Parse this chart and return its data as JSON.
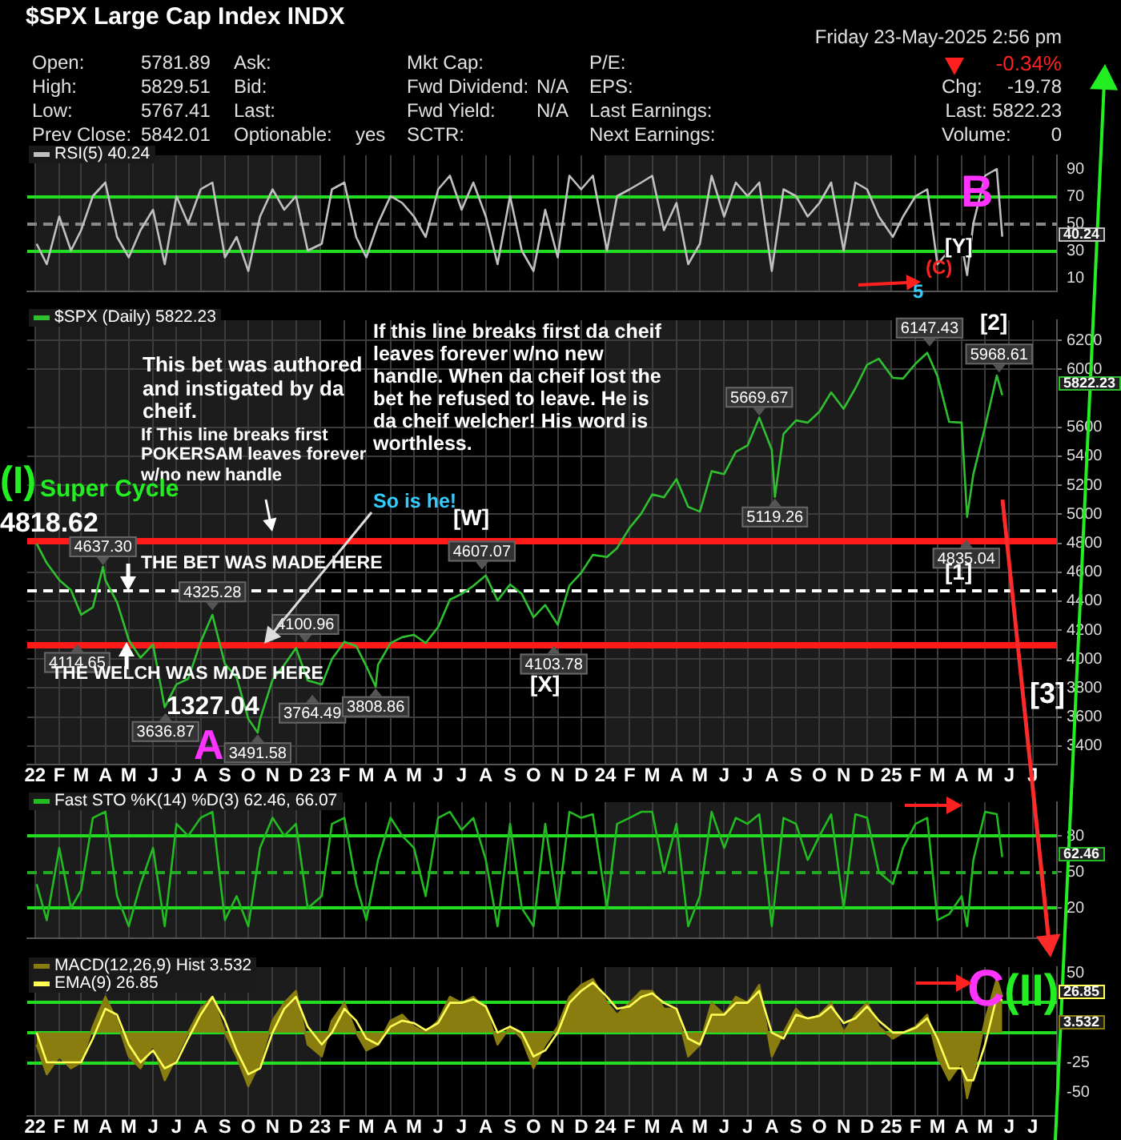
{
  "chart_data": [
    {
      "type": "other",
      "title": "$SPX Large Cap Index INDX",
      "annotations": [
        "Friday  23-May-2025  2:56 pm",
        "Open:",
        "5781.89",
        "Ask:",
        "Mkt Cap:",
        "P/E:",
        "-0.34%",
        "High:",
        "5829.51",
        "Bid:",
        "Fwd Dividend:",
        "N/A",
        "EPS:",
        "Chg:",
        "-19.78",
        "Low:",
        "5767.41",
        "Last:",
        "Fwd Yield:",
        "N/A",
        "Last Earnings:",
        "Last: 5822.23",
        "Prev Close:",
        "5842.01",
        "Optionable:",
        "yes",
        "SCTR:",
        "Next Earnings:",
        "Volume:",
        "0"
      ]
    },
    {
      "type": "line",
      "legend": "top left",
      "grid": "x",
      "tick_labels": "y",
      "x": [
        "2022-01-03",
        "2022-01-16",
        "2022-02-01",
        "2022-02-16",
        "2022-03-01",
        "2022-03-16",
        "2022-04-01",
        "2022-04-16",
        "2022-05-01",
        "2022-05-16",
        "2022-06-01",
        "2022-06-16",
        "2022-07-01",
        "2022-07-16",
        "2022-08-01",
        "2022-08-16",
        "2022-09-01",
        "2022-09-16",
        "2022-10-01",
        "2022-10-16",
        "2022-11-01",
        "2022-11-16",
        "2022-12-01",
        "2022-12-16",
        "2023-01-03",
        "2023-01-16",
        "2023-02-01",
        "2023-02-16",
        "2023-03-01",
        "2023-03-16",
        "2023-04-01",
        "2023-04-16",
        "2023-05-01",
        "2023-05-16",
        "2023-06-01",
        "2023-06-16",
        "2023-07-01",
        "2023-07-16",
        "2023-08-01",
        "2023-08-16",
        "2023-09-01",
        "2023-09-16",
        "2023-10-01",
        "2023-10-16",
        "2023-11-01",
        "2023-11-16",
        "2023-12-01",
        "2023-12-16",
        "2024-01-03",
        "2024-01-16",
        "2024-02-01",
        "2024-02-16",
        "2024-03-01",
        "2024-03-16",
        "2024-04-01",
        "2024-04-16",
        "2024-05-01",
        "2024-05-16",
        "2024-06-01",
        "2024-06-16",
        "2024-07-01",
        "2024-07-16",
        "2024-08-01",
        "2024-08-16",
        "2024-09-01",
        "2024-09-16",
        "2024-10-01",
        "2024-10-16",
        "2024-11-01",
        "2024-11-16",
        "2024-12-01",
        "2024-12-16",
        "2025-01-03",
        "2025-01-16",
        "2025-02-01",
        "2025-02-16",
        "2025-03-01",
        "2025-03-16",
        "2025-04-01",
        "2025-04-08",
        "2025-04-16",
        "2025-05-01",
        "2025-05-16",
        "2025-05-23"
      ],
      "xlim": [
        "2021-12-22",
        "2025-08-01"
      ],
      "xticks": [
        {
          "value": "2022-01",
          "label": null
        },
        {
          "value": "2022-02",
          "label": null
        },
        {
          "value": "2022-03",
          "label": null
        },
        {
          "value": "2022-04",
          "label": null
        },
        {
          "value": "2022-05",
          "label": null
        },
        {
          "value": "2022-06",
          "label": null
        },
        {
          "value": "2022-07",
          "label": null
        },
        {
          "value": "2022-08",
          "label": null
        },
        {
          "value": "2022-09",
          "label": null
        },
        {
          "value": "2022-10",
          "label": null
        },
        {
          "value": "2022-11",
          "label": null
        },
        {
          "value": "2022-12",
          "label": null
        },
        {
          "value": "2023-01",
          "label": null
        },
        {
          "value": "2023-02",
          "label": null
        },
        {
          "value": "2023-03",
          "label": null
        },
        {
          "value": "2023-04",
          "label": null
        },
        {
          "value": "2023-05",
          "label": null
        },
        {
          "value": "2023-06",
          "label": null
        },
        {
          "value": "2023-07",
          "label": null
        },
        {
          "value": "2023-08",
          "label": null
        },
        {
          "value": "2023-09",
          "label": null
        },
        {
          "value": "2023-10",
          "label": null
        },
        {
          "value": "2023-11",
          "label": null
        },
        {
          "value": "2023-12",
          "label": null
        },
        {
          "value": "2024-01",
          "label": null
        },
        {
          "value": "2024-02",
          "label": null
        },
        {
          "value": "2024-03",
          "label": null
        },
        {
          "value": "2024-04",
          "label": null
        },
        {
          "value": "2024-05",
          "label": null
        },
        {
          "value": "2024-06",
          "label": null
        },
        {
          "value": "2024-07",
          "label": null
        },
        {
          "value": "2024-08",
          "label": null
        },
        {
          "value": "2024-09",
          "label": null
        },
        {
          "value": "2024-10",
          "label": null
        },
        {
          "value": "2024-11",
          "label": null
        },
        {
          "value": "2024-12",
          "label": null
        },
        {
          "value": "2025-01",
          "label": null
        },
        {
          "value": "2025-02",
          "label": null
        },
        {
          "value": "2025-03",
          "label": null
        },
        {
          "value": "2025-04",
          "label": null
        },
        {
          "value": "2025-05",
          "label": null
        },
        {
          "value": "2025-06",
          "label": null
        },
        {
          "value": "2025-07",
          "label": null
        }
      ],
      "ylim": [
        0,
        100
      ],
      "yticks": [
        10,
        30,
        50,
        70,
        90
      ],
      "series": [
        {
          "name": "RSI(5) 40.24",
          "color": "#c0c0c0",
          "values": [
            35,
            20,
            55,
            30,
            45,
            70,
            80,
            40,
            25,
            45,
            60,
            20,
            70,
            50,
            75,
            80,
            25,
            40,
            15,
            55,
            75,
            60,
            70,
            30,
            35,
            75,
            80,
            40,
            25,
            50,
            70,
            65,
            55,
            40,
            75,
            85,
            60,
            80,
            55,
            20,
            70,
            30,
            15,
            60,
            25,
            85,
            75,
            85,
            30,
            70,
            75,
            80,
            85,
            45,
            65,
            20,
            35,
            85,
            55,
            80,
            70,
            80,
            15,
            75,
            70,
            55,
            65,
            80,
            30,
            80,
            75,
            55,
            40,
            55,
            70,
            75,
            20,
            30,
            35,
            12,
            50,
            85,
            90,
            40.24
          ]
        }
      ],
      "ref_lines": [
        {
          "axis": "y",
          "value": 70,
          "color": "#22dd22"
        },
        {
          "axis": "y",
          "value": 30,
          "color": "#22dd22"
        },
        {
          "axis": "y",
          "value": 50,
          "color": "#888888",
          "line_style": "dashed"
        }
      ],
      "bands": [
        {
          "axis": "x",
          "from": "2022-01-01",
          "to": "2023-01-01",
          "color": "#1c1c1c"
        },
        {
          "axis": "x",
          "from": "2024-01-01",
          "to": "2025-01-01",
          "color": "#1c1c1c"
        }
      ],
      "annotations": [
        "B",
        "[Y]",
        "(C)",
        "5",
        "40.24"
      ]
    },
    {
      "type": "line",
      "legend": "top left",
      "grid": true,
      "x": [
        "2022-01-03",
        "2022-01-16",
        "2022-02-01",
        "2022-02-16",
        "2022-03-01",
        "2022-03-16",
        "2022-03-29",
        "2022-04-01",
        "2022-04-16",
        "2022-05-01",
        "2022-05-16",
        "2022-06-01",
        "2022-06-16",
        "2022-07-01",
        "2022-07-16",
        "2022-08-01",
        "2022-08-16",
        "2022-09-01",
        "2022-09-16",
        "2022-10-01",
        "2022-10-13",
        "2022-10-16",
        "2022-11-01",
        "2022-11-16",
        "2022-12-01",
        "2022-12-16",
        "2023-01-03",
        "2023-01-16",
        "2023-02-01",
        "2023-02-16",
        "2023-03-01",
        "2023-03-13",
        "2023-03-16",
        "2023-04-01",
        "2023-04-16",
        "2023-05-01",
        "2023-05-16",
        "2023-06-01",
        "2023-06-16",
        "2023-07-01",
        "2023-07-16",
        "2023-08-01",
        "2023-08-16",
        "2023-09-01",
        "2023-09-16",
        "2023-10-01",
        "2023-10-16",
        "2023-11-01",
        "2023-11-16",
        "2023-12-01",
        "2023-12-16",
        "2024-01-03",
        "2024-01-16",
        "2024-02-01",
        "2024-02-16",
        "2024-03-01",
        "2024-03-16",
        "2024-04-01",
        "2024-04-16",
        "2024-05-01",
        "2024-05-16",
        "2024-06-01",
        "2024-06-16",
        "2024-07-01",
        "2024-07-16",
        "2024-08-01",
        "2024-08-05",
        "2024-08-16",
        "2024-09-01",
        "2024-09-16",
        "2024-10-01",
        "2024-10-16",
        "2024-11-01",
        "2024-11-16",
        "2024-12-01",
        "2024-12-16",
        "2025-01-03",
        "2025-01-16",
        "2025-02-01",
        "2025-02-16",
        "2025-03-01",
        "2025-03-16",
        "2025-04-01",
        "2025-04-08",
        "2025-04-16",
        "2025-05-01",
        "2025-05-16",
        "2025-05-23"
      ],
      "xlim": [
        "2021-12-22",
        "2025-08-01"
      ],
      "xticks": [
        {
          "value": "2022-01",
          "label": "22"
        },
        {
          "value": "2022-02",
          "label": "F"
        },
        {
          "value": "2022-03",
          "label": "M"
        },
        {
          "value": "2022-04",
          "label": "A"
        },
        {
          "value": "2022-05",
          "label": "M"
        },
        {
          "value": "2022-06",
          "label": "J"
        },
        {
          "value": "2022-07",
          "label": "J"
        },
        {
          "value": "2022-08",
          "label": "A"
        },
        {
          "value": "2022-09",
          "label": "S"
        },
        {
          "value": "2022-10",
          "label": "O"
        },
        {
          "value": "2022-11",
          "label": "N"
        },
        {
          "value": "2022-12",
          "label": "D"
        },
        {
          "value": "2023-01",
          "label": "23"
        },
        {
          "value": "2023-02",
          "label": "F"
        },
        {
          "value": "2023-03",
          "label": "M"
        },
        {
          "value": "2023-04",
          "label": "A"
        },
        {
          "value": "2023-05",
          "label": "M"
        },
        {
          "value": "2023-06",
          "label": "J"
        },
        {
          "value": "2023-07",
          "label": "J"
        },
        {
          "value": "2023-08",
          "label": "A"
        },
        {
          "value": "2023-09",
          "label": "S"
        },
        {
          "value": "2023-10",
          "label": "O"
        },
        {
          "value": "2023-11",
          "label": "N"
        },
        {
          "value": "2023-12",
          "label": "D"
        },
        {
          "value": "2024-01",
          "label": "24"
        },
        {
          "value": "2024-02",
          "label": "F"
        },
        {
          "value": "2024-03",
          "label": "M"
        },
        {
          "value": "2024-04",
          "label": "A"
        },
        {
          "value": "2024-05",
          "label": "M"
        },
        {
          "value": "2024-06",
          "label": "J"
        },
        {
          "value": "2024-07",
          "label": "J"
        },
        {
          "value": "2024-08",
          "label": "A"
        },
        {
          "value": "2024-09",
          "label": "S"
        },
        {
          "value": "2024-10",
          "label": "O"
        },
        {
          "value": "2024-11",
          "label": "N"
        },
        {
          "value": "2024-12",
          "label": "D"
        },
        {
          "value": "2025-01",
          "label": "25"
        },
        {
          "value": "2025-02",
          "label": "F"
        },
        {
          "value": "2025-03",
          "label": "M"
        },
        {
          "value": "2025-04",
          "label": "A"
        },
        {
          "value": "2025-05",
          "label": "M"
        },
        {
          "value": "2025-06",
          "label": "J"
        },
        {
          "value": "2025-07",
          "label": "J"
        }
      ],
      "ylim": [
        3270,
        6340
      ],
      "yticks": [
        3400,
        3600,
        3800,
        4000,
        4200,
        4400,
        4600,
        4800,
        5000,
        5200,
        5400,
        5600,
        6000,
        6200
      ],
      "series": [
        {
          "name": "$SPX (Daily) 5822.23",
          "color": "#2fc02f",
          "values": [
            4796,
            4663,
            4546,
            4475,
            4306,
            4357,
            4637.3,
            4545,
            4392,
            4131,
            4008,
            4101,
            3667,
            3825,
            3863,
            4118,
            4305,
            3966,
            3873,
            3586,
            3491.58,
            3583,
            3856,
            3959,
            4076,
            3852,
            3824,
            3999,
            4119,
            4090,
            3951,
            3808.86,
            3960,
            4109,
            4151,
            4167,
            4110,
            4221,
            4410,
            4450,
            4505,
            4577,
            4404,
            4515,
            4450,
            4288,
            4373,
            4237,
            4508,
            4595,
            4719,
            4705,
            4766,
            4906,
            5005,
            5137,
            5117,
            5243,
            5051,
            5018,
            5297,
            5277,
            5431,
            5475,
            5667,
            5446,
            5119.26,
            5554,
            5648,
            5633,
            5708,
            5842,
            5728,
            5870,
            6032,
            6074,
            5942,
            5937,
            6040,
            6115,
            5955,
            5638,
            5633,
            4982,
            5276,
            5604,
            5958,
            5822.23
          ]
        }
      ],
      "ref_lines": [
        {
          "axis": "y",
          "value": 4818.62,
          "label": "4818.62",
          "color": "#ff1a1a"
        },
        {
          "axis": "y",
          "value": 4470,
          "color": "#ffffff",
          "line_style": "dashed"
        },
        {
          "axis": "y",
          "value": 4100,
          "color": "#ff1a1a"
        }
      ],
      "bands": [
        {
          "axis": "x",
          "from": "2022-01-01",
          "to": "2023-01-01",
          "color": "#1c1c1c"
        },
        {
          "axis": "x",
          "from": "2024-01-01",
          "to": "2025-01-01",
          "color": "#1c1c1c"
        }
      ],
      "annotations": [
        "This bet was authored and instigated by da cheif.",
        "If This line breaks first POKERSAM leaves forever w/no new handle",
        "If this line breaks first da cheif leaves forever w/no new handle. When da cheif lost the bet he refused to leave. He is da cheif welcher! His word is worthless.",
        "So is he!",
        "THE BET WAS MADE HERE",
        "THE WELCH WAS MADE HERE",
        "(I)",
        "Super Cycle",
        "[W]",
        "[X]",
        "[1]",
        "[2]",
        "[3]",
        "1327.04",
        "A",
        {
          "text": "4637.30",
          "x": "2022-03-29",
          "y": 4637.3
        },
        {
          "text": "4114.65",
          "x": "2022-02-24",
          "y": 4114.65
        },
        {
          "text": "4325.28",
          "x": "2022-08-16",
          "y": 4325.28
        },
        {
          "text": "3636.87",
          "x": "2022-06-17",
          "y": 3636.87
        },
        {
          "text": "3491.58",
          "x": "2022-10-13",
          "y": 3491.58
        },
        {
          "text": "4100.96",
          "x": "2022-12-13",
          "y": 4100.96
        },
        {
          "text": "3764.49",
          "x": "2022-12-22",
          "y": 3764.49
        },
        {
          "text": "3808.86",
          "x": "2023-03-13",
          "y": 3808.86
        },
        {
          "text": "4607.07",
          "x": "2023-07-27",
          "y": 4607.07
        },
        {
          "text": "4103.78",
          "x": "2023-10-27",
          "y": 4103.78
        },
        {
          "text": "5669.67",
          "x": "2024-07-16",
          "y": 5669.67
        },
        {
          "text": "5119.26",
          "x": "2024-08-05",
          "y": 5119.26
        },
        {
          "text": "6147.43",
          "x": "2025-02-19",
          "y": 6147.43
        },
        {
          "text": "4835.04",
          "x": "2025-04-07",
          "y": 4835.04
        },
        {
          "text": "5968.61",
          "x": "2025-05-19",
          "y": 5968.61
        },
        "5822.23"
      ]
    },
    {
      "type": "line",
      "legend": "top left",
      "grid": true,
      "tick_labels": "y",
      "x": [
        "2022-01-03",
        "2022-01-16",
        "2022-02-01",
        "2022-02-16",
        "2022-03-01",
        "2022-03-16",
        "2022-04-01",
        "2022-04-16",
        "2022-05-01",
        "2022-05-16",
        "2022-06-01",
        "2022-06-16",
        "2022-07-01",
        "2022-07-16",
        "2022-08-01",
        "2022-08-16",
        "2022-09-01",
        "2022-09-16",
        "2022-10-01",
        "2022-10-16",
        "2022-11-01",
        "2022-11-16",
        "2022-12-01",
        "2022-12-16",
        "2023-01-03",
        "2023-01-16",
        "2023-02-01",
        "2023-02-16",
        "2023-03-01",
        "2023-03-16",
        "2023-04-01",
        "2023-04-16",
        "2023-05-01",
        "2023-05-16",
        "2023-06-01",
        "2023-06-16",
        "2023-07-01",
        "2023-07-16",
        "2023-08-01",
        "2023-08-16",
        "2023-09-01",
        "2023-09-16",
        "2023-10-01",
        "2023-10-16",
        "2023-11-01",
        "2023-11-16",
        "2023-12-01",
        "2023-12-16",
        "2024-01-03",
        "2024-01-16",
        "2024-02-01",
        "2024-02-16",
        "2024-03-01",
        "2024-03-16",
        "2024-04-01",
        "2024-04-16",
        "2024-05-01",
        "2024-05-16",
        "2024-06-01",
        "2024-06-16",
        "2024-07-01",
        "2024-07-16",
        "2024-08-01",
        "2024-08-16",
        "2024-09-01",
        "2024-09-16",
        "2024-10-01",
        "2024-10-16",
        "2024-11-01",
        "2024-11-16",
        "2024-12-01",
        "2024-12-16",
        "2025-01-03",
        "2025-01-16",
        "2025-02-01",
        "2025-02-16",
        "2025-03-01",
        "2025-03-16",
        "2025-04-01",
        "2025-04-08",
        "2025-04-16",
        "2025-05-01",
        "2025-05-16",
        "2025-05-23"
      ],
      "xlim": [
        "2021-12-22",
        "2025-08-01"
      ],
      "xticks": [
        {
          "value": "2022-01",
          "label": null
        },
        {
          "value": "2022-02",
          "label": null
        },
        {
          "value": "2022-03",
          "label": null
        },
        {
          "value": "2022-04",
          "label": null
        },
        {
          "value": "2022-05",
          "label": null
        },
        {
          "value": "2022-06",
          "label": null
        },
        {
          "value": "2022-07",
          "label": null
        },
        {
          "value": "2022-08",
          "label": null
        },
        {
          "value": "2022-09",
          "label": null
        },
        {
          "value": "2022-10",
          "label": null
        },
        {
          "value": "2022-11",
          "label": null
        },
        {
          "value": "2022-12",
          "label": null
        },
        {
          "value": "2023-01",
          "label": null
        },
        {
          "value": "2023-02",
          "label": null
        },
        {
          "value": "2023-03",
          "label": null
        },
        {
          "value": "2023-04",
          "label": null
        },
        {
          "value": "2023-05",
          "label": null
        },
        {
          "value": "2023-06",
          "label": null
        },
        {
          "value": "2023-07",
          "label": null
        },
        {
          "value": "2023-08",
          "label": null
        },
        {
          "value": "2023-09",
          "label": null
        },
        {
          "value": "2023-10",
          "label": null
        },
        {
          "value": "2023-11",
          "label": null
        },
        {
          "value": "2023-12",
          "label": null
        },
        {
          "value": "2024-01",
          "label": null
        },
        {
          "value": "2024-02",
          "label": null
        },
        {
          "value": "2024-03",
          "label": null
        },
        {
          "value": "2024-04",
          "label": null
        },
        {
          "value": "2024-05",
          "label": null
        },
        {
          "value": "2024-06",
          "label": null
        },
        {
          "value": "2024-07",
          "label": null
        },
        {
          "value": "2024-08",
          "label": null
        },
        {
          "value": "2024-09",
          "label": null
        },
        {
          "value": "2024-10",
          "label": null
        },
        {
          "value": "2024-11",
          "label": null
        },
        {
          "value": "2024-12",
          "label": null
        },
        {
          "value": "2025-01",
          "label": null
        },
        {
          "value": "2025-02",
          "label": null
        },
        {
          "value": "2025-03",
          "label": null
        },
        {
          "value": "2025-04",
          "label": null
        },
        {
          "value": "2025-05",
          "label": null
        },
        {
          "value": "2025-06",
          "label": null
        },
        {
          "value": "2025-07",
          "label": null
        }
      ],
      "ylim": [
        -5,
        108
      ],
      "yticks": [
        20,
        50,
        80
      ],
      "series": [
        {
          "name": "Fast STO %K(14) %D(3) 62.46, 66.07",
          "color": "#22bb22",
          "values": [
            40,
            10,
            70,
            20,
            35,
            95,
            100,
            30,
            5,
            40,
            70,
            5,
            90,
            80,
            95,
            100,
            10,
            30,
            5,
            70,
            95,
            80,
            90,
            20,
            30,
            90,
            95,
            40,
            10,
            60,
            95,
            80,
            70,
            30,
            95,
            100,
            85,
            95,
            60,
            5,
            90,
            20,
            5,
            90,
            20,
            100,
            95,
            98,
            20,
            90,
            95,
            100,
            100,
            50,
            90,
            5,
            30,
            100,
            70,
            95,
            90,
            98,
            5,
            95,
            90,
            60,
            80,
            98,
            20,
            98,
            95,
            50,
            40,
            70,
            90,
            95,
            10,
            15,
            30,
            5,
            60,
            100,
            98,
            62.46
          ]
        }
      ],
      "ref_lines": [
        {
          "axis": "y",
          "value": 80,
          "color": "#22dd22"
        },
        {
          "axis": "y",
          "value": 20,
          "color": "#22dd22"
        },
        {
          "axis": "y",
          "value": 50,
          "color": "#22aa22",
          "line_style": "dashed"
        }
      ],
      "bands": [
        {
          "axis": "x",
          "from": "2022-01-01",
          "to": "2023-01-01",
          "color": "#1c1c1c"
        },
        {
          "axis": "x",
          "from": "2024-01-01",
          "to": "2025-01-01",
          "color": "#1c1c1c"
        }
      ],
      "annotations": [
        "62.46"
      ]
    },
    {
      "type": "area",
      "legend": "top left",
      "grid": "x",
      "x": [
        "2022-01-03",
        "2022-01-16",
        "2022-02-01",
        "2022-02-16",
        "2022-03-01",
        "2022-03-16",
        "2022-04-01",
        "2022-04-16",
        "2022-05-01",
        "2022-05-16",
        "2022-06-01",
        "2022-06-16",
        "2022-07-01",
        "2022-07-16",
        "2022-08-01",
        "2022-08-16",
        "2022-09-01",
        "2022-09-16",
        "2022-10-01",
        "2022-10-16",
        "2022-11-01",
        "2022-11-16",
        "2022-12-01",
        "2022-12-16",
        "2023-01-03",
        "2023-01-16",
        "2023-02-01",
        "2023-02-16",
        "2023-03-01",
        "2023-03-16",
        "2023-04-01",
        "2023-04-16",
        "2023-05-01",
        "2023-05-16",
        "2023-06-01",
        "2023-06-16",
        "2023-07-01",
        "2023-07-16",
        "2023-08-01",
        "2023-08-16",
        "2023-09-01",
        "2023-09-16",
        "2023-10-01",
        "2023-10-16",
        "2023-11-01",
        "2023-11-16",
        "2023-12-01",
        "2023-12-16",
        "2024-01-03",
        "2024-01-16",
        "2024-02-01",
        "2024-02-16",
        "2024-03-01",
        "2024-03-16",
        "2024-04-01",
        "2024-04-16",
        "2024-05-01",
        "2024-05-16",
        "2024-06-01",
        "2024-06-16",
        "2024-07-01",
        "2024-07-16",
        "2024-08-01",
        "2024-08-16",
        "2024-09-01",
        "2024-09-16",
        "2024-10-01",
        "2024-10-16",
        "2024-11-01",
        "2024-11-16",
        "2024-12-01",
        "2024-12-16",
        "2025-01-03",
        "2025-01-16",
        "2025-02-01",
        "2025-02-16",
        "2025-03-01",
        "2025-03-16",
        "2025-04-01",
        "2025-04-08",
        "2025-04-16",
        "2025-05-01",
        "2025-05-16",
        "2025-05-23"
      ],
      "xlim": [
        "2021-12-22",
        "2025-08-01"
      ],
      "xticks": [
        {
          "value": "2022-01",
          "label": "22"
        },
        {
          "value": "2022-02",
          "label": "F"
        },
        {
          "value": "2022-03",
          "label": "M"
        },
        {
          "value": "2022-04",
          "label": "A"
        },
        {
          "value": "2022-05",
          "label": "M"
        },
        {
          "value": "2022-06",
          "label": "J"
        },
        {
          "value": "2022-07",
          "label": "J"
        },
        {
          "value": "2022-08",
          "label": "A"
        },
        {
          "value": "2022-09",
          "label": "S"
        },
        {
          "value": "2022-10",
          "label": "O"
        },
        {
          "value": "2022-11",
          "label": "N"
        },
        {
          "value": "2022-12",
          "label": "D"
        },
        {
          "value": "2023-01",
          "label": "23"
        },
        {
          "value": "2023-02",
          "label": "F"
        },
        {
          "value": "2023-03",
          "label": "M"
        },
        {
          "value": "2023-04",
          "label": "A"
        },
        {
          "value": "2023-05",
          "label": "M"
        },
        {
          "value": "2023-06",
          "label": "J"
        },
        {
          "value": "2023-07",
          "label": "J"
        },
        {
          "value": "2023-08",
          "label": "A"
        },
        {
          "value": "2023-09",
          "label": "S"
        },
        {
          "value": "2023-10",
          "label": "O"
        },
        {
          "value": "2023-11",
          "label": "N"
        },
        {
          "value": "2023-12",
          "label": "D"
        },
        {
          "value": "2024-01",
          "label": "24"
        },
        {
          "value": "2024-02",
          "label": "F"
        },
        {
          "value": "2024-03",
          "label": "M"
        },
        {
          "value": "2024-04",
          "label": "A"
        },
        {
          "value": "2024-05",
          "label": "M"
        },
        {
          "value": "2024-06",
          "label": "J"
        },
        {
          "value": "2024-07",
          "label": "J"
        },
        {
          "value": "2024-08",
          "label": "A"
        },
        {
          "value": "2024-09",
          "label": "S"
        },
        {
          "value": "2024-10",
          "label": "O"
        },
        {
          "value": "2024-11",
          "label": "N"
        },
        {
          "value": "2024-12",
          "label": "D"
        },
        {
          "value": "2025-01",
          "label": "25"
        },
        {
          "value": "2025-02",
          "label": "F"
        },
        {
          "value": "2025-03",
          "label": "M"
        },
        {
          "value": "2025-04",
          "label": "A"
        },
        {
          "value": "2025-05",
          "label": "M"
        },
        {
          "value": "2025-06",
          "label": "J"
        },
        {
          "value": "2025-07",
          "label": "J"
        }
      ],
      "ylim": [
        -70,
        55
      ],
      "yticks": [
        50,
        -25,
        -50
      ],
      "series": [
        {
          "name": "MACD(12,26,9) Hist 3.532",
          "color": "#8a7d10",
          "values": [
            -10,
            -35,
            -20,
            -30,
            -25,
            5,
            30,
            10,
            -20,
            -30,
            -10,
            -40,
            -20,
            0,
            20,
            30,
            0,
            -20,
            -45,
            -25,
            10,
            25,
            35,
            -10,
            -20,
            10,
            25,
            0,
            -15,
            -10,
            10,
            15,
            5,
            0,
            10,
            30,
            25,
            30,
            20,
            -10,
            5,
            -5,
            -30,
            -10,
            5,
            30,
            40,
            45,
            25,
            15,
            25,
            35,
            35,
            20,
            20,
            -20,
            -10,
            25,
            15,
            30,
            25,
            40,
            -20,
            0,
            20,
            10,
            15,
            25,
            0,
            15,
            25,
            5,
            -5,
            0,
            5,
            15,
            -20,
            -40,
            -25,
            -55,
            -35,
            10,
            45,
            30
          ]
        },
        {
          "name": "EMA(9) 26.85",
          "type": "line",
          "color": "#ffff55",
          "values": [
            0,
            -25,
            -25,
            -25,
            -25,
            -5,
            20,
            15,
            -10,
            -25,
            -15,
            -30,
            -25,
            -5,
            15,
            30,
            10,
            -15,
            -35,
            -30,
            0,
            20,
            30,
            5,
            -10,
            0,
            20,
            10,
            -5,
            -10,
            5,
            10,
            8,
            2,
            8,
            25,
            25,
            28,
            22,
            0,
            5,
            0,
            -20,
            -15,
            0,
            25,
            35,
            42,
            30,
            20,
            22,
            30,
            33,
            25,
            20,
            -5,
            -10,
            15,
            15,
            25,
            25,
            35,
            0,
            -5,
            15,
            12,
            14,
            22,
            8,
            12,
            22,
            10,
            0,
            0,
            4,
            12,
            -5,
            -30,
            -30,
            -40,
            -40,
            -10,
            30,
            26.85
          ]
        }
      ],
      "ref_lines": [
        {
          "axis": "y",
          "value": 25,
          "color": "#22dd22"
        },
        {
          "axis": "y",
          "value": 0,
          "color": "#22dd22"
        },
        {
          "axis": "y",
          "value": -25,
          "color": "#22dd22"
        }
      ],
      "bands": [
        {
          "axis": "x",
          "from": "2022-01-01",
          "to": "2023-01-01",
          "color": "#1c1c1c"
        },
        {
          "axis": "x",
          "from": "2024-01-01",
          "to": "2025-01-01",
          "color": "#1c1c1c"
        }
      ],
      "annotations": [
        "C",
        "(II)",
        "26.85",
        "3.532"
      ]
    }
  ]
}
